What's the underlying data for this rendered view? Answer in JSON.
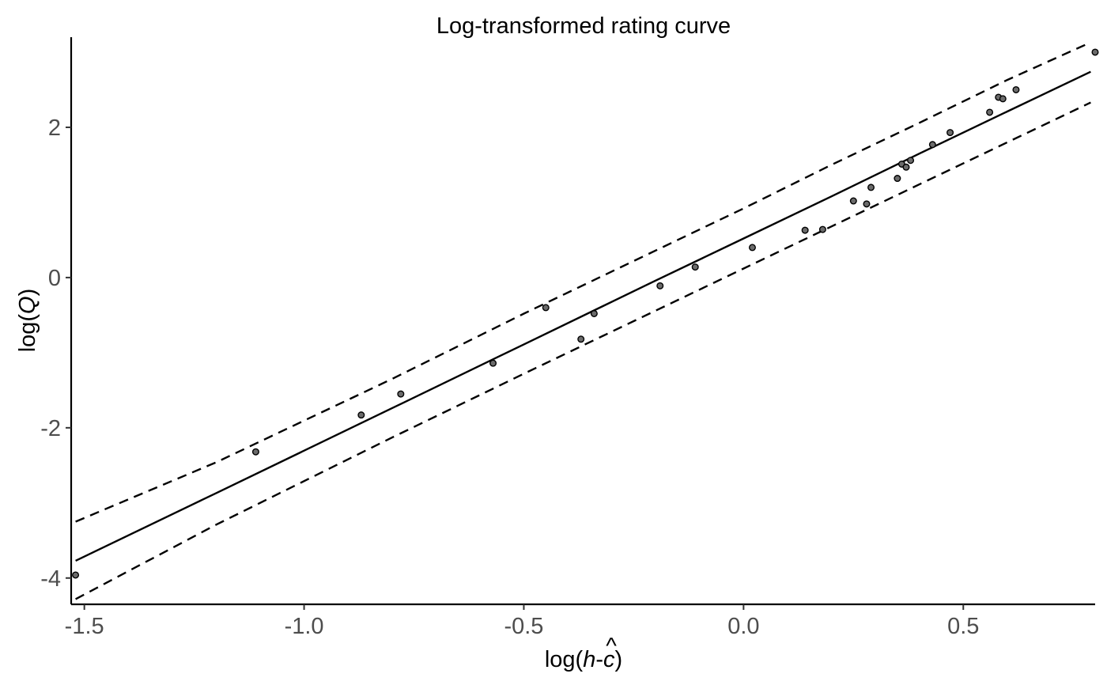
{
  "chart_data": {
    "type": "scatter",
    "title": "Log-transformed rating curve",
    "xlabel": {
      "prefix": "log(",
      "var_h": "h",
      "minus": "-",
      "var_c": "c",
      "hat": "^",
      "suffix": ")"
    },
    "ylabel": {
      "prefix": "log(",
      "var_q": "Q",
      "suffix": ")"
    },
    "xlim": [
      -1.53,
      0.8
    ],
    "ylim": [
      -4.35,
      3.2
    ],
    "x_ticks": [
      {
        "value": -1.5,
        "label": "-1.5"
      },
      {
        "value": -1.0,
        "label": "-1.0"
      },
      {
        "value": -0.5,
        "label": "-0.5"
      },
      {
        "value": 0.0,
        "label": "0.0"
      },
      {
        "value": 0.5,
        "label": "0.5"
      }
    ],
    "y_ticks": [
      {
        "value": -4,
        "label": "-4"
      },
      {
        "value": -2,
        "label": "-2"
      },
      {
        "value": 0,
        "label": "0"
      },
      {
        "value": 2,
        "label": "2"
      }
    ],
    "grid": false,
    "legend": "none",
    "points": [
      {
        "x": -1.52,
        "y": -3.96
      },
      {
        "x": -1.11,
        "y": -2.32
      },
      {
        "x": -0.87,
        "y": -1.83
      },
      {
        "x": -0.78,
        "y": -1.55
      },
      {
        "x": -0.57,
        "y": -1.14
      },
      {
        "x": -0.45,
        "y": -0.4
      },
      {
        "x": -0.37,
        "y": -0.82
      },
      {
        "x": -0.34,
        "y": -0.48
      },
      {
        "x": -0.19,
        "y": -0.11
      },
      {
        "x": -0.11,
        "y": 0.14
      },
      {
        "x": 0.02,
        "y": 0.4
      },
      {
        "x": 0.14,
        "y": 0.63
      },
      {
        "x": 0.18,
        "y": 0.64
      },
      {
        "x": 0.25,
        "y": 1.02
      },
      {
        "x": 0.28,
        "y": 0.98
      },
      {
        "x": 0.29,
        "y": 1.2
      },
      {
        "x": 0.35,
        "y": 1.32
      },
      {
        "x": 0.36,
        "y": 1.51
      },
      {
        "x": 0.37,
        "y": 1.47
      },
      {
        "x": 0.38,
        "y": 1.56
      },
      {
        "x": 0.43,
        "y": 1.77
      },
      {
        "x": 0.47,
        "y": 1.93
      },
      {
        "x": 0.56,
        "y": 2.2
      },
      {
        "x": 0.58,
        "y": 2.4
      },
      {
        "x": 0.59,
        "y": 2.38
      },
      {
        "x": 0.62,
        "y": 2.5
      },
      {
        "x": 0.8,
        "y": 3.0
      }
    ],
    "series": [
      {
        "kind": "fit",
        "style": "solid",
        "x": [
          -1.52,
          -1.2,
          -0.8,
          -0.5,
          -0.2,
          0.0,
          0.2,
          0.4,
          0.6,
          0.79
        ],
        "y": [
          -3.77,
          -2.87,
          -1.74,
          -0.89,
          -0.04,
          0.52,
          1.08,
          1.65,
          2.21,
          2.74
        ]
      },
      {
        "kind": "upper",
        "style": "dashed",
        "x": [
          -1.52,
          -1.2,
          -0.8,
          -0.5,
          -0.2,
          0.0,
          0.2,
          0.4,
          0.6,
          0.79
        ],
        "y": [
          -3.25,
          -2.46,
          -1.35,
          -0.48,
          0.36,
          0.92,
          1.5,
          2.06,
          2.63,
          3.13
        ]
      },
      {
        "kind": "lower",
        "style": "dashed",
        "x": [
          -1.52,
          -1.2,
          -0.8,
          -0.5,
          -0.2,
          0.0,
          0.2,
          0.4,
          0.6,
          0.79
        ],
        "y": [
          -4.28,
          -3.29,
          -2.13,
          -1.28,
          -0.44,
          0.12,
          0.68,
          1.24,
          1.8,
          2.33
        ]
      }
    ]
  }
}
